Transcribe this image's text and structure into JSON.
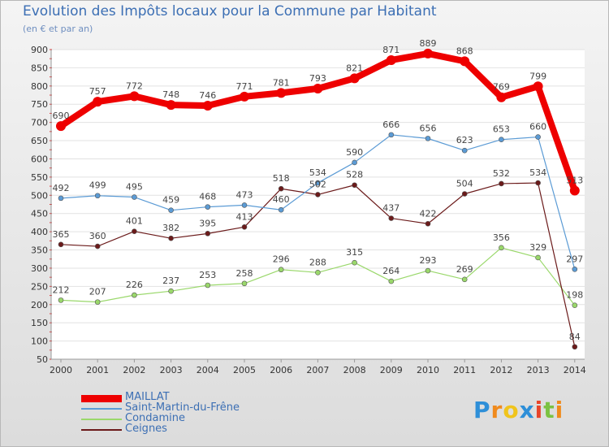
{
  "title": "Evolution des Impôts locaux pour la Commune par Habitant",
  "subtitle": "(en € et par an)",
  "brand": {
    "letters": [
      "P",
      "r",
      "o",
      "x",
      "i",
      "t",
      "i"
    ],
    "colors": [
      "#2e8fd8",
      "#f08a1c",
      "#f0c41c",
      "#2e8fd8",
      "#e8452a",
      "#7cc242",
      "#f08a1c"
    ]
  },
  "chart_data": {
    "type": "line",
    "title": "Evolution des Impôts locaux pour la Commune par Habitant",
    "ylabel": "(en € et par an)",
    "xlabel": "",
    "ylim": [
      50,
      900
    ],
    "yticks": [
      50,
      100,
      150,
      200,
      250,
      300,
      350,
      400,
      450,
      500,
      550,
      600,
      650,
      700,
      750,
      800,
      850,
      900
    ],
    "x": [
      "2000",
      "2001",
      "2002",
      "2003",
      "2004",
      "2005",
      "2006",
      "2007",
      "2008",
      "2009",
      "2010",
      "2011",
      "2012",
      "2013",
      "2014"
    ],
    "series": [
      {
        "name": "MAILLAT",
        "color": "#ee0000",
        "values": [
          690,
          757,
          772,
          748,
          746,
          771,
          781,
          793,
          821,
          871,
          889,
          868,
          769,
          799,
          513
        ]
      },
      {
        "name": "Saint-Martin-du-Frêne",
        "color": "#5b9bd5",
        "values": [
          492,
          499,
          495,
          459,
          468,
          473,
          460,
          534,
          590,
          666,
          656,
          623,
          653,
          660,
          297
        ]
      },
      {
        "name": "Condamine",
        "color": "#9ad86b",
        "values": [
          212,
          207,
          226,
          237,
          253,
          258,
          296,
          288,
          315,
          264,
          293,
          269,
          356,
          329,
          198
        ]
      },
      {
        "name": "Ceignes",
        "color": "#6b1a1a",
        "values": [
          365,
          360,
          401,
          382,
          395,
          413,
          518,
          502,
          528,
          437,
          422,
          504,
          532,
          534,
          84
        ]
      }
    ]
  }
}
